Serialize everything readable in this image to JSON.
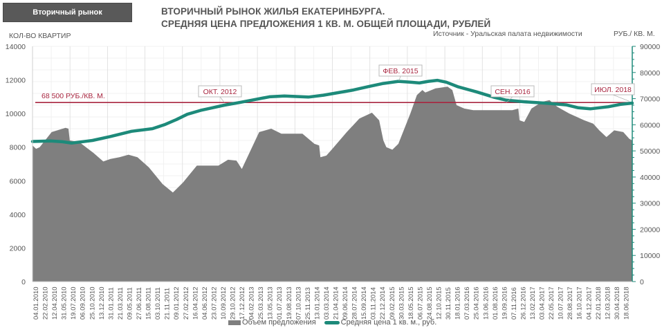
{
  "header": {
    "tab_label": "Вторичный рынок",
    "title_line1": "ВТОРИЧНЫЙ РЫНОК ЖИЛЬЯ ЕКАТЕРИНБУРГА.",
    "title_line2": "СРЕДНЯЯ ЦЕНА ПРЕДЛОЖЕНИЯ 1 КВ. М. ОБЩЕЙ ПЛОЩАДИ, РУБЛЕЙ",
    "source": "Источник - Уральская палата недвижимости"
  },
  "colors": {
    "area": "#7f7f7f",
    "price_line": "#1d8a7a",
    "reference_line": "#a8253f",
    "annotation_text": "#a8253f",
    "right_axis": "#1d8a7a",
    "grid": "#e6e6e6"
  },
  "chart_data": {
    "type": "area+line",
    "title": "ВТОРИЧНЫЙ РЫНОК ЖИЛЬЯ ЕКАТЕРИНБУРГА. СРЕДНЯЯ ЦЕНА ПРЕДЛОЖЕНИЯ 1 КВ. М. ОБЩЕЙ ПЛОЩАДИ, РУБЛЕЙ",
    "ylabel_left": "КОЛ-ВО КВАРТИР",
    "ylabel_right": "РУБ./ КВ. М.",
    "ylim_left": [
      0,
      14000
    ],
    "ylim_right": [
      0,
      90000
    ],
    "yticks_left": [
      0,
      2000,
      4000,
      6000,
      8000,
      10000,
      12000,
      14000
    ],
    "yticks_right": [
      0,
      10000,
      20000,
      30000,
      40000,
      50000,
      60000,
      70000,
      80000,
      90000
    ],
    "grid": true,
    "legend_position": "bottom",
    "x_tick_labels": [
      "04.01.2010",
      "22.02.2010",
      "12.04.2010",
      "31.05.2010",
      "19.07.2010",
      "06.09.2010",
      "25.10.2010",
      "13.12.2010",
      "31.01.2011",
      "21.03.2011",
      "09.05.2011",
      "27.06.2011",
      "15.08.2011",
      "03.10.2011",
      "21.11.2011",
      "09.01.2012",
      "27.02.2012",
      "16.04.2012",
      "04.06.2012",
      "23.07.2012",
      "10.09.2012",
      "29.10.2012",
      "17.12.2012",
      "04.02.2013",
      "25.03.2013",
      "13.05.2013",
      "01.07.2013",
      "19.08.2013",
      "07.10.2013",
      "25.11.2013",
      "13.01.2014",
      "03.03.2014",
      "21.04.2014",
      "09.06.2014",
      "28.07.2014",
      "15.09.2014",
      "03.11.2014",
      "22.12.2014",
      "09.02.2015",
      "30.03.2015",
      "18.05.2015",
      "06.07.2015",
      "24.08.2015",
      "12.10.2015",
      "30.11.2015",
      "18.01.2016",
      "07.03.2016",
      "25.04.2016",
      "13.06.2016",
      "01.08.2016",
      "19.09.2016",
      "07.11.2016",
      "26.12.2016",
      "13.02.2017",
      "03.04.2017",
      "22.05.2017",
      "10.07.2017",
      "28.08.2017",
      "16.10.2017",
      "04.12.2017",
      "22.01.2018",
      "12.03.2018",
      "30.04.2018",
      "18.06.2018"
    ],
    "series": [
      {
        "name": "Объем предложения",
        "type": "area",
        "axis": "left",
        "points": [
          [
            0,
            8100
          ],
          [
            0.006,
            7900
          ],
          [
            0.012,
            8000
          ],
          [
            0.032,
            8900
          ],
          [
            0.055,
            9150
          ],
          [
            0.06,
            9100
          ],
          [
            0.062,
            8400
          ],
          [
            0.078,
            8300
          ],
          [
            0.102,
            7650
          ],
          [
            0.118,
            7150
          ],
          [
            0.13,
            7300
          ],
          [
            0.145,
            7400
          ],
          [
            0.16,
            7550
          ],
          [
            0.175,
            7400
          ],
          [
            0.194,
            6800
          ],
          [
            0.217,
            5800
          ],
          [
            0.234,
            5300
          ],
          [
            0.251,
            5900
          ],
          [
            0.274,
            6900
          ],
          [
            0.31,
            6900
          ],
          [
            0.326,
            7250
          ],
          [
            0.34,
            7200
          ],
          [
            0.349,
            6700
          ],
          [
            0.378,
            8900
          ],
          [
            0.398,
            9100
          ],
          [
            0.415,
            8800
          ],
          [
            0.45,
            8800
          ],
          [
            0.47,
            8200
          ],
          [
            0.478,
            8100
          ],
          [
            0.48,
            7400
          ],
          [
            0.49,
            7500
          ],
          [
            0.5,
            7900
          ],
          [
            0.524,
            8900
          ],
          [
            0.545,
            9700
          ],
          [
            0.566,
            10050
          ],
          [
            0.578,
            9600
          ],
          [
            0.585,
            8400
          ],
          [
            0.59,
            8000
          ],
          [
            0.6,
            7850
          ],
          [
            0.61,
            8200
          ],
          [
            0.63,
            10000
          ],
          [
            0.641,
            11100
          ],
          [
            0.65,
            11400
          ],
          [
            0.655,
            11250
          ],
          [
            0.672,
            11500
          ],
          [
            0.692,
            11600
          ],
          [
            0.7,
            11400
          ],
          [
            0.707,
            10500
          ],
          [
            0.72,
            10300
          ],
          [
            0.735,
            10200
          ],
          [
            0.76,
            10200
          ],
          [
            0.78,
            10200
          ],
          [
            0.8,
            10200
          ],
          [
            0.81,
            10300
          ],
          [
            0.812,
            9600
          ],
          [
            0.82,
            9500
          ],
          [
            0.832,
            10300
          ],
          [
            0.85,
            10700
          ],
          [
            0.862,
            10800
          ],
          [
            0.875,
            10400
          ],
          [
            0.895,
            10000
          ],
          [
            0.92,
            9600
          ],
          [
            0.935,
            9400
          ],
          [
            0.945,
            9000
          ],
          [
            0.957,
            8600
          ],
          [
            0.97,
            9000
          ],
          [
            0.985,
            8900
          ],
          [
            0.995,
            8500
          ],
          [
            1,
            8400
          ]
        ]
      },
      {
        "name": "Средняя цена 1 кв. м., руб.",
        "type": "line",
        "axis": "right",
        "points": [
          [
            0,
            53600
          ],
          [
            0.03,
            53800
          ],
          [
            0.05,
            53500
          ],
          [
            0.065,
            53000
          ],
          [
            0.1,
            54000
          ],
          [
            0.15,
            56500
          ],
          [
            0.2,
            58000
          ],
          [
            0.23,
            60000
          ],
          [
            0.255,
            62500
          ],
          [
            0.275,
            64500
          ],
          [
            0.3,
            66500
          ],
          [
            0.33,
            67500
          ],
          [
            0.36,
            68500
          ],
          [
            0.39,
            69800
          ],
          [
            0.42,
            71000
          ],
          [
            0.45,
            71000
          ],
          [
            0.475,
            70500
          ],
          [
            0.5,
            71500
          ],
          [
            0.53,
            72800
          ],
          [
            0.56,
            74300
          ],
          [
            0.59,
            75800
          ],
          [
            0.62,
            76500
          ],
          [
            0.635,
            76000
          ],
          [
            0.66,
            76800
          ],
          [
            0.6,
            75400
          ],
          [
            0.62,
            76200
          ],
          [
            0.645,
            76000
          ],
          [
            0.655,
            76500
          ],
          [
            0.6,
            75400
          ]
        ]
      }
    ],
    "reference_line": {
      "value": 68500,
      "axis": "right",
      "label": "68 500 РУБ./КВ. М."
    },
    "annotations": [
      {
        "label": "ОКТ. 2012",
        "x": 0.32,
        "value": 68500
      },
      {
        "label": "ФЕВ. 2015",
        "x": 0.611,
        "value": 76800
      },
      {
        "label": "СЕН. 2016",
        "x": 0.79,
        "value": 68500
      },
      {
        "label": "ИЮЛ. 2018",
        "x": 0.995,
        "value": 69000
      }
    ]
  },
  "price_line_points": [
    [
      0,
      53600
    ],
    [
      0.03,
      53800
    ],
    [
      0.05,
      53500
    ],
    [
      0.065,
      53000
    ],
    [
      0.1,
      54000
    ],
    [
      0.13,
      55500
    ],
    [
      0.165,
      57500
    ],
    [
      0.2,
      58500
    ],
    [
      0.22,
      60000
    ],
    [
      0.24,
      62000
    ],
    [
      0.258,
      64000
    ],
    [
      0.28,
      65500
    ],
    [
      0.3,
      66500
    ],
    [
      0.32,
      67500
    ],
    [
      0.345,
      68500
    ],
    [
      0.37,
      69600
    ],
    [
      0.395,
      70700
    ],
    [
      0.42,
      71000
    ],
    [
      0.44,
      70800
    ],
    [
      0.46,
      70600
    ],
    [
      0.485,
      71300
    ],
    [
      0.51,
      72300
    ],
    [
      0.535,
      73300
    ],
    [
      0.56,
      74600
    ],
    [
      0.585,
      75800
    ],
    [
      0.61,
      76600
    ],
    [
      0.63,
      76300
    ],
    [
      0.645,
      76000
    ],
    [
      0.66,
      76600
    ],
    [
      0.675,
      77000
    ],
    [
      0.69,
      76300
    ],
    [
      0.71,
      74500
    ],
    [
      0.74,
      72600
    ],
    [
      0.77,
      70500
    ],
    [
      0.79,
      69400
    ],
    [
      0.82,
      68800
    ],
    [
      0.86,
      68200
    ],
    [
      0.89,
      67600
    ],
    [
      0.91,
      66500
    ],
    [
      0.93,
      66100
    ],
    [
      0.96,
      66900
    ],
    [
      0.98,
      67800
    ],
    [
      1,
      68300
    ],
    [
      1,
      68300
    ]
  ],
  "legend": {
    "area_label": "Объем предложения",
    "line_label": "Средняя цена 1 кв. м., руб."
  }
}
